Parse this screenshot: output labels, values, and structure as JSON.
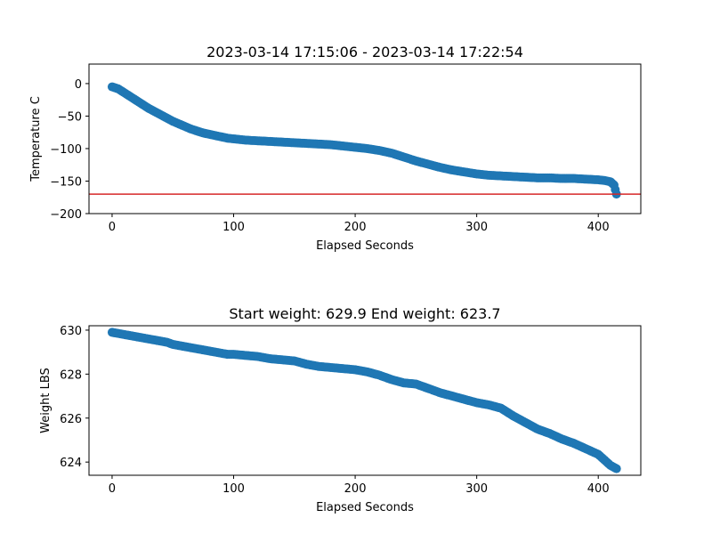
{
  "chart_data": [
    {
      "type": "scatter",
      "title": "2023-03-14 17:15:06 - 2023-03-14 17:22:54",
      "xlabel": "Elapsed Seconds",
      "ylabel": "Temperature C",
      "xlim": [
        -19,
        435
      ],
      "ylim": [
        -200,
        30
      ],
      "xticks": [
        0,
        100,
        200,
        300,
        400
      ],
      "yticks": [
        0,
        -50,
        -100,
        -150,
        -200
      ],
      "ytick_labels": [
        "0",
        "−50",
        "−100",
        "−150",
        "−200"
      ],
      "grid": false,
      "marker_color": "#1f77b4",
      "reference_line": {
        "y": -170,
        "color": "#d62728"
      },
      "points": [
        [
          0,
          -5
        ],
        [
          5,
          -8
        ],
        [
          10,
          -14
        ],
        [
          15,
          -20
        ],
        [
          20,
          -26
        ],
        [
          25,
          -32
        ],
        [
          30,
          -38
        ],
        [
          35,
          -43
        ],
        [
          40,
          -48
        ],
        [
          45,
          -53
        ],
        [
          50,
          -58
        ],
        [
          55,
          -62
        ],
        [
          60,
          -66
        ],
        [
          65,
          -70
        ],
        [
          70,
          -73
        ],
        [
          75,
          -76
        ],
        [
          80,
          -78
        ],
        [
          85,
          -80
        ],
        [
          90,
          -82
        ],
        [
          95,
          -84
        ],
        [
          100,
          -85
        ],
        [
          110,
          -87
        ],
        [
          120,
          -88
        ],
        [
          130,
          -89
        ],
        [
          140,
          -90
        ],
        [
          150,
          -91
        ],
        [
          160,
          -92
        ],
        [
          170,
          -93
        ],
        [
          180,
          -94
        ],
        [
          190,
          -96
        ],
        [
          200,
          -98
        ],
        [
          210,
          -100
        ],
        [
          220,
          -103
        ],
        [
          230,
          -107
        ],
        [
          240,
          -113
        ],
        [
          250,
          -119
        ],
        [
          260,
          -124
        ],
        [
          270,
          -129
        ],
        [
          280,
          -133
        ],
        [
          290,
          -136
        ],
        [
          300,
          -139
        ],
        [
          310,
          -141
        ],
        [
          320,
          -142
        ],
        [
          330,
          -143
        ],
        [
          340,
          -144
        ],
        [
          350,
          -145
        ],
        [
          360,
          -145
        ],
        [
          370,
          -146
        ],
        [
          380,
          -146
        ],
        [
          390,
          -147
        ],
        [
          400,
          -148
        ],
        [
          405,
          -149
        ],
        [
          410,
          -151
        ],
        [
          413,
          -156
        ],
        [
          415,
          -170
        ]
      ]
    },
    {
      "type": "scatter",
      "title": "Start weight: 629.9 End weight: 623.7",
      "xlabel": "Elapsed Seconds",
      "ylabel": "Weight LBS",
      "xlim": [
        -19,
        435
      ],
      "ylim": [
        623.4,
        630.2
      ],
      "xticks": [
        0,
        100,
        200,
        300,
        400
      ],
      "yticks": [
        624,
        626,
        628,
        630
      ],
      "ytick_labels": [
        "624",
        "626",
        "628",
        "630"
      ],
      "grid": false,
      "marker_color": "#1f77b4",
      "points": [
        [
          0,
          629.9
        ],
        [
          5,
          629.85
        ],
        [
          10,
          629.8
        ],
        [
          15,
          629.75
        ],
        [
          20,
          629.7
        ],
        [
          25,
          629.65
        ],
        [
          30,
          629.6
        ],
        [
          35,
          629.55
        ],
        [
          40,
          629.5
        ],
        [
          45,
          629.45
        ],
        [
          50,
          629.35
        ],
        [
          55,
          629.3
        ],
        [
          60,
          629.25
        ],
        [
          65,
          629.2
        ],
        [
          70,
          629.15
        ],
        [
          75,
          629.1
        ],
        [
          80,
          629.05
        ],
        [
          85,
          629.0
        ],
        [
          90,
          628.95
        ],
        [
          95,
          628.9
        ],
        [
          100,
          628.9
        ],
        [
          110,
          628.85
        ],
        [
          120,
          628.8
        ],
        [
          130,
          628.7
        ],
        [
          140,
          628.65
        ],
        [
          150,
          628.6
        ],
        [
          160,
          628.45
        ],
        [
          170,
          628.35
        ],
        [
          180,
          628.3
        ],
        [
          190,
          628.25
        ],
        [
          200,
          628.2
        ],
        [
          210,
          628.1
        ],
        [
          220,
          627.95
        ],
        [
          230,
          627.75
        ],
        [
          240,
          627.6
        ],
        [
          250,
          627.55
        ],
        [
          260,
          627.35
        ],
        [
          270,
          627.15
        ],
        [
          280,
          627.0
        ],
        [
          290,
          626.85
        ],
        [
          300,
          626.7
        ],
        [
          310,
          626.6
        ],
        [
          320,
          626.45
        ],
        [
          330,
          626.1
        ],
        [
          340,
          625.8
        ],
        [
          350,
          625.5
        ],
        [
          360,
          625.3
        ],
        [
          370,
          625.05
        ],
        [
          380,
          624.85
        ],
        [
          390,
          624.6
        ],
        [
          400,
          624.35
        ],
        [
          405,
          624.1
        ],
        [
          410,
          623.85
        ],
        [
          415,
          623.7
        ]
      ]
    }
  ]
}
